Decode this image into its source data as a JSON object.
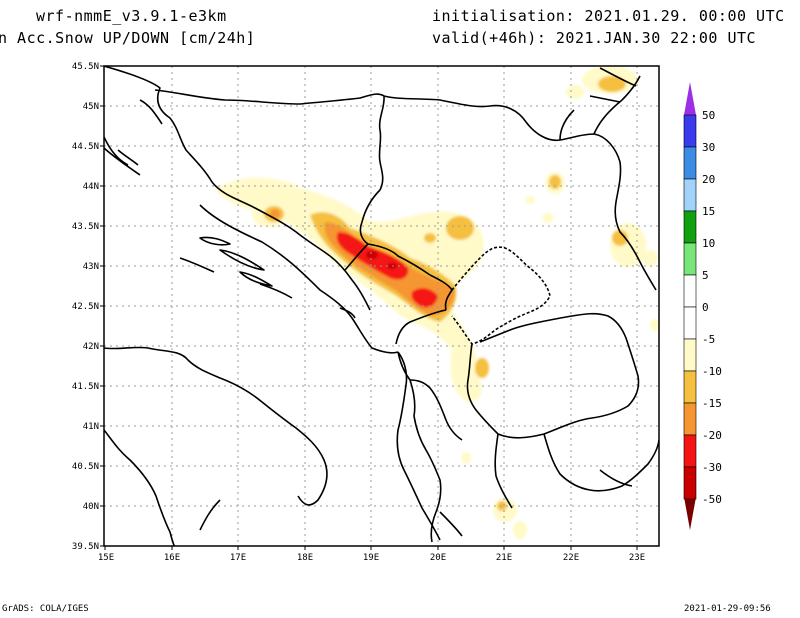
{
  "header": {
    "model": "wrf-nmmE_v3.9.1-e3km",
    "field": "n Acc.Snow UP/DOWN [cm/24h]",
    "init": "initialisation: 2021.01.29.  00:00 UTC",
    "valid": "valid(+46h): 2021.JAN.30 22:00 UTC"
  },
  "axes": {
    "lat_labels": [
      "45.5N",
      "45N",
      "44.5N",
      "44N",
      "43.5N",
      "43N",
      "42.5N",
      "42N",
      "41.5N",
      "41N",
      "40.5N",
      "40N",
      "39.5N"
    ],
    "lon_labels": [
      "15E",
      "16E",
      "17E",
      "18E",
      "19E",
      "20E",
      "21E",
      "22E",
      "23E"
    ]
  },
  "colorbar": {
    "labels": [
      "50",
      "30",
      "20",
      "15",
      "10",
      "5",
      "0",
      "-5",
      "-10",
      "-15",
      "-20",
      "-30",
      "-50"
    ],
    "top_arrow_color": "#9b2ee6",
    "bottom_arrow_color": "#7a0000",
    "colors": [
      "#3a3aee",
      "#3c8ce6",
      "#a0d2fa",
      "#10a010",
      "#78e678",
      "#ffffff",
      "#ffffff",
      "#fffac8",
      "#f5c040",
      "#f59632",
      "#f51414",
      "#c80000"
    ]
  },
  "footer": {
    "left": "GrADS: COLA/IGES",
    "right": "2021-01-29-09:56"
  }
}
